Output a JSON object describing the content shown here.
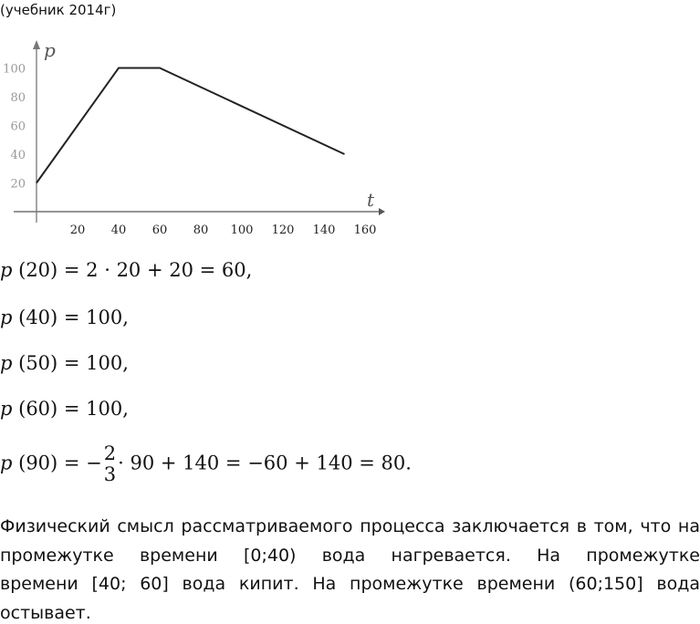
{
  "caption": "(учебник 2014г)",
  "chart_data": {
    "type": "line",
    "title": "",
    "xlabel": "t",
    "ylabel": "p",
    "xlim": [
      0,
      160
    ],
    "ylim": [
      0,
      100
    ],
    "xticks": [
      20,
      40,
      60,
      80,
      100,
      120,
      140,
      160
    ],
    "yticks": [
      20,
      40,
      60,
      80,
      100
    ],
    "grid": false,
    "x": [
      0,
      40,
      60,
      150
    ],
    "y": [
      20,
      100,
      100,
      40
    ]
  },
  "formulas": [
    {
      "fn": "p",
      "text": " (20) = 2 · 20 + 20 = 60,"
    },
    {
      "fn": "p",
      "text": " (40) = 100,"
    },
    {
      "fn": "p",
      "text": " (50) = 100,"
    },
    {
      "fn": "p",
      "text": " (60) = 100,"
    }
  ],
  "last_formula": {
    "fn": "p",
    "prefix": " (90) = −",
    "num": "2",
    "den": "3",
    "suffix": "· 90 + 140 = −60 + 140 = 80."
  },
  "paragraph": [
    "Физический смысл рассматриваемого процесса заключается в том, что на",
    "промежутке времени [0;40) вода нагревается. На промежутке",
    "времени [40; 60] вода кипит. На промежутке времени (60;150] вода",
    "остывает."
  ]
}
